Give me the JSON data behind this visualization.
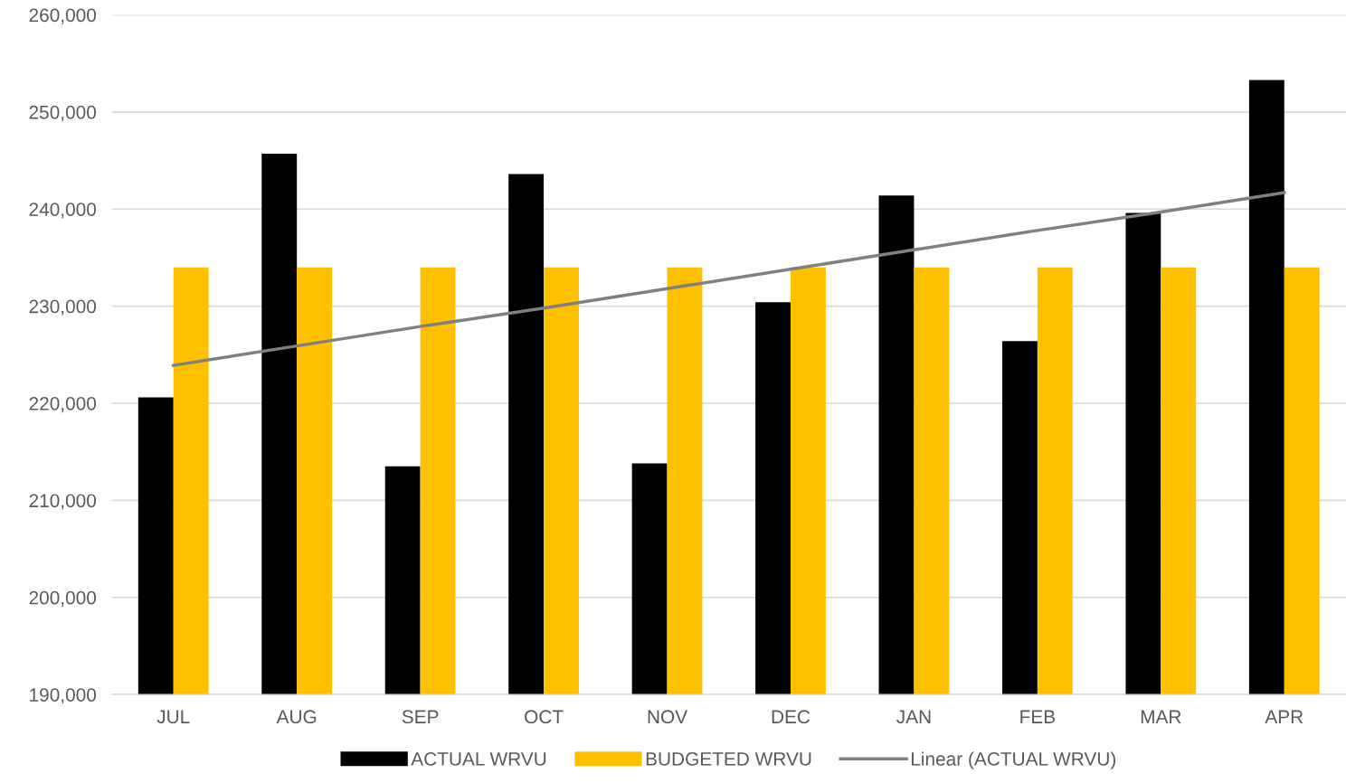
{
  "chart_data": {
    "type": "bar",
    "categories": [
      "JUL",
      "AUG",
      "SEP",
      "OCT",
      "NOV",
      "DEC",
      "JAN",
      "FEB",
      "MAR",
      "APR"
    ],
    "series": [
      {
        "name": "ACTUAL WRVU",
        "color": "#000000",
        "values": [
          220600,
          245700,
          213500,
          243600,
          213800,
          230400,
          241400,
          226400,
          239600,
          253300
        ]
      },
      {
        "name": "BUDGETED WRVU",
        "color": "#ffc000",
        "values": [
          234000,
          234000,
          234000,
          234000,
          234000,
          234000,
          234000,
          234000,
          234000,
          234000
        ]
      },
      {
        "name": "Linear (ACTUAL WRVU)",
        "type": "line",
        "color": "#808080",
        "values": [
          223900,
          225900,
          227900,
          229800,
          231800,
          233800,
          235800,
          237800,
          239700,
          241700
        ]
      }
    ],
    "ylim": [
      190000,
      260000
    ],
    "yticks": [
      {
        "value": 190000,
        "label": "190,000"
      },
      {
        "value": 200000,
        "label": "200,000"
      },
      {
        "value": 210000,
        "label": "210,000"
      },
      {
        "value": 220000,
        "label": "220,000"
      },
      {
        "value": 230000,
        "label": "230,000"
      },
      {
        "value": 240000,
        "label": "240,000"
      },
      {
        "value": 250000,
        "label": "250,000"
      },
      {
        "value": 260000,
        "label": "260,000"
      }
    ],
    "grid": "y",
    "legend": "bottom"
  }
}
